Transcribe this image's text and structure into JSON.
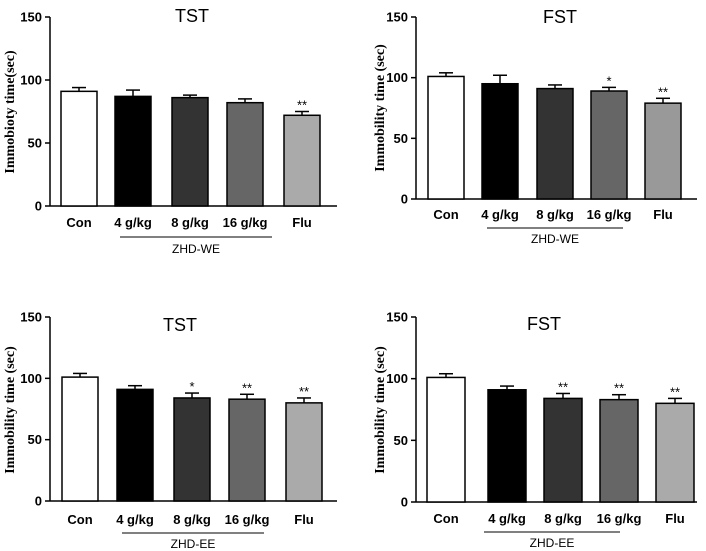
{
  "chart_data": [
    {
      "type": "bar",
      "title": "TST",
      "ylabel": "Immobioty time(sec)",
      "ylim": [
        0,
        150
      ],
      "yticks": [
        "0",
        "50",
        "100",
        "150"
      ],
      "categories": [
        "Con",
        "4 g/kg",
        "8 g/kg",
        "16 g/kg",
        "Flu"
      ],
      "values": [
        91,
        87,
        86,
        82,
        72
      ],
      "errors": [
        3,
        5,
        2,
        3,
        3
      ],
      "significance": [
        "",
        "",
        "",
        "",
        "**"
      ],
      "group_label": "ZHD-WE",
      "bar_colors": [
        "#ffffff",
        "#000000",
        "#333333",
        "#666666",
        "#aaaaaa"
      ]
    },
    {
      "type": "bar",
      "title": "FST",
      "ylabel": "Immobility time (sec)",
      "ylim": [
        0,
        150
      ],
      "yticks": [
        "0",
        "50",
        "100",
        "150"
      ],
      "categories": [
        "Con",
        "4 g/kg",
        "8 g/kg",
        "16 g/kg",
        "Flu"
      ],
      "values": [
        101,
        95,
        91,
        89,
        79
      ],
      "errors": [
        3,
        7,
        3,
        3,
        4
      ],
      "significance": [
        "",
        "",
        "",
        "*",
        "**"
      ],
      "group_label": "ZHD-WE",
      "bar_colors": [
        "#ffffff",
        "#000000",
        "#333333",
        "#666666",
        "#999999"
      ]
    },
    {
      "type": "bar",
      "title": "TST",
      "ylabel": "Immobility time (sec)",
      "ylim": [
        0,
        150
      ],
      "yticks": [
        "0",
        "50",
        "100",
        "150"
      ],
      "categories": [
        "Con",
        "4 g/kg",
        "8 g/kg",
        "16 g/kg",
        "Flu"
      ],
      "values": [
        101,
        91,
        84,
        83,
        80
      ],
      "errors": [
        3,
        3,
        4,
        4,
        4
      ],
      "significance": [
        "",
        "",
        "*",
        "**",
        "**"
      ],
      "group_label": "ZHD-EE",
      "bar_colors": [
        "#ffffff",
        "#000000",
        "#333333",
        "#666666",
        "#aaaaaa"
      ]
    },
    {
      "type": "bar",
      "title": "FST",
      "ylabel": "Immobility time (sec)",
      "ylim": [
        0,
        150
      ],
      "yticks": [
        "0",
        "50",
        "100",
        "150"
      ],
      "categories": [
        "Con",
        "4 g/kg",
        "8 g/kg",
        "16 g/kg",
        "Flu"
      ],
      "values": [
        101,
        91,
        84,
        83,
        80
      ],
      "errors": [
        3,
        3,
        4,
        4,
        4
      ],
      "significance": [
        "",
        "",
        "**",
        "**",
        "**"
      ],
      "group_label": "ZHD-EE",
      "bar_colors": [
        "#ffffff",
        "#000000",
        "#333333",
        "#666666",
        "#aaaaaa"
      ]
    }
  ]
}
